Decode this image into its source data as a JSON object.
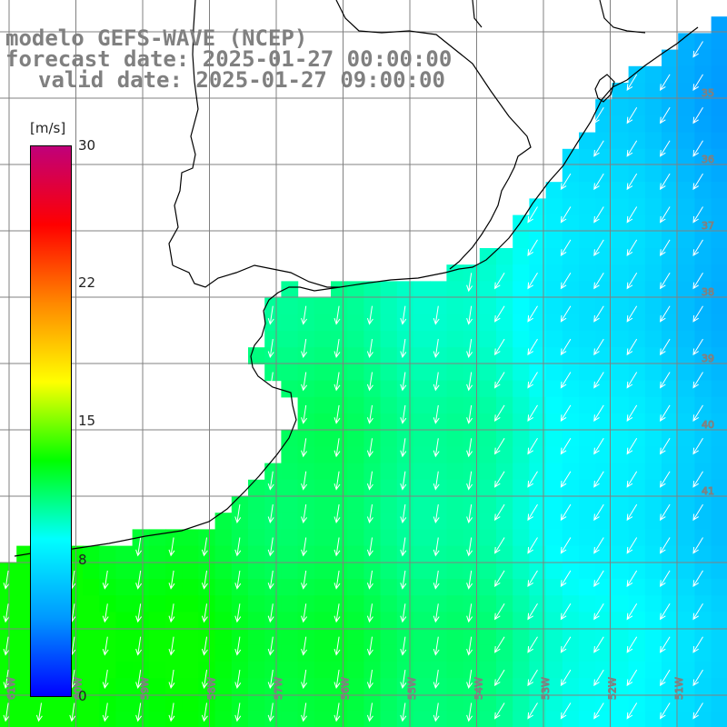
{
  "title": {
    "line1": "modelo GEFS-WAVE (NCEP)",
    "line2": "forecast date: 2025-01-27 00:00:00",
    "line3": "valid date: 2025-01-27 09:00:00"
  },
  "colorbar": {
    "unit": "[m/s]",
    "ticks": [
      "30",
      "22",
      "15",
      "8",
      "0"
    ],
    "tick_values": [
      30,
      22,
      15,
      8,
      0
    ],
    "range": [
      0,
      30
    ],
    "colors": [
      "#0000ff",
      "#0099ff",
      "#00ffff",
      "#00ff00",
      "#ffff00",
      "#ff8800",
      "#ff0000",
      "#c0007a"
    ]
  },
  "map": {
    "region": "South Atlantic off southern Brazil / Uruguay / Argentina",
    "field": "wind speed with direction arrows",
    "dominant_speed_range_ms": [
      4,
      13
    ],
    "arrow_direction": "southward / south-westward",
    "lat_labels": [
      "35",
      "36",
      "37",
      "38",
      "39",
      "40",
      "41"
    ],
    "lon_labels": [
      "61W",
      "60W",
      "59W",
      "58W",
      "57W",
      "56W",
      "55W",
      "54W",
      "53W",
      "52W",
      "51W"
    ],
    "colors": {
      "land": "#ffffff",
      "coast": "#000000",
      "grid": "#808080",
      "arrows": "#ffffff"
    }
  }
}
